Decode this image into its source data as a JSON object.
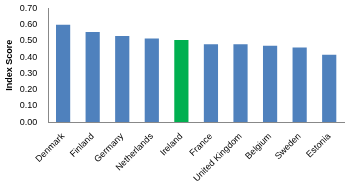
{
  "chart_data": {
    "type": "bar",
    "y_label": "Index Score",
    "categories": [
      "Denmark",
      "Finland",
      "Germany",
      "Netherlands",
      "Ireland",
      "France",
      "United Kingdom",
      "Belgium",
      "Sweden",
      "Estonia"
    ],
    "values": [
      0.6,
      0.555,
      0.53,
      0.515,
      0.505,
      0.48,
      0.48,
      0.47,
      0.46,
      0.415
    ],
    "colors": [
      "#4f81bd",
      "#4f81bd",
      "#4f81bd",
      "#4f81bd",
      "#00b050",
      "#4f81bd",
      "#4f81bd",
      "#4f81bd",
      "#4f81bd",
      "#4f81bd"
    ],
    "ylim": [
      0,
      0.7
    ],
    "yticks": [
      {
        "value": 0,
        "label": "0.00"
      },
      {
        "value": 0.1,
        "label": "0.10"
      },
      {
        "value": 0.2,
        "label": "0.20"
      },
      {
        "value": 0.3,
        "label": "0.30"
      },
      {
        "value": 0.4,
        "label": "0.40"
      },
      {
        "value": 0.5,
        "label": "0.50"
      },
      {
        "value": 0.6,
        "label": "0.60"
      },
      {
        "value": 0.7,
        "label": "0.70"
      }
    ],
    "grid": false
  }
}
